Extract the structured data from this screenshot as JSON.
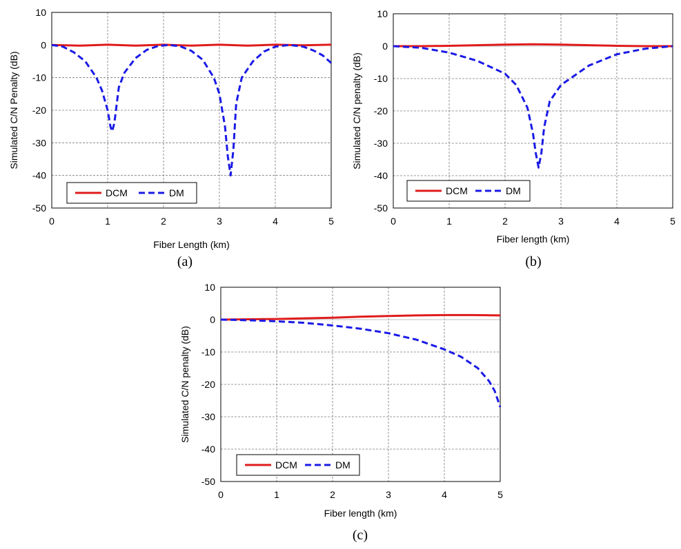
{
  "colors": {
    "DCM": "#e01b1b",
    "DM": "#1a1ae6"
  },
  "chart_data": [
    {
      "type": "line",
      "caption": "(a)",
      "xlabel": "Fiber Length (km)",
      "ylabel": "Simulated C/N Penalty (dB)",
      "xlim": [
        0,
        5
      ],
      "ylim": [
        -50,
        10
      ],
      "xticks": [
        "0",
        "1",
        "2",
        "3",
        "4",
        "5"
      ],
      "yticks": [
        "10",
        "0",
        "-10",
        "-20",
        "-30",
        "-40",
        "-50"
      ],
      "grid": true,
      "legend_position": "bottom-left",
      "series": [
        {
          "name": "DCM",
          "style": "solid",
          "x": [
            0,
            0.5,
            1.0,
            1.5,
            2.0,
            2.5,
            3.0,
            3.5,
            4.0,
            4.5,
            5.0
          ],
          "y": [
            0,
            -0.2,
            0.1,
            -0.2,
            0.1,
            -0.2,
            0.1,
            -0.2,
            0.1,
            -0.1,
            0.1
          ]
        },
        {
          "name": "DM",
          "style": "dashed",
          "x": [
            0,
            0.2,
            0.4,
            0.6,
            0.8,
            0.9,
            1.0,
            1.05,
            1.08,
            1.12,
            1.2,
            1.3,
            1.5,
            1.7,
            1.9,
            2.1,
            2.3,
            2.5,
            2.7,
            2.9,
            3.0,
            3.1,
            3.15,
            3.2,
            3.25,
            3.3,
            3.4,
            3.6,
            3.8,
            4.0,
            4.25,
            4.5,
            4.7,
            4.85,
            5.0
          ],
          "y": [
            0,
            -0.5,
            -2.3,
            -5,
            -10,
            -14,
            -20,
            -25,
            -26.5,
            -24,
            -13,
            -8.5,
            -4,
            -1.5,
            -0.3,
            0,
            -0.4,
            -1.8,
            -4.5,
            -10,
            -15,
            -25,
            -34,
            -40,
            -32,
            -18,
            -10,
            -5,
            -2,
            -0.5,
            0,
            -0.5,
            -1.8,
            -3.2,
            -5.5
          ]
        }
      ],
      "legend": [
        "DCM",
        "DM"
      ]
    },
    {
      "type": "line",
      "caption": "(b)",
      "xlabel": "Fiber length (km)",
      "ylabel": "Simulated C/N penalty (dB)",
      "xlim": [
        0,
        5
      ],
      "ylim": [
        -50,
        10
      ],
      "xticks": [
        "0",
        "1",
        "2",
        "3",
        "4",
        "5"
      ],
      "yticks": [
        "10",
        "0",
        "-10",
        "-20",
        "-30",
        "-40",
        "-50"
      ],
      "grid": true,
      "legend_position": "bottom-left",
      "series": [
        {
          "name": "DCM",
          "style": "solid",
          "x": [
            0,
            0.5,
            1.0,
            1.5,
            2.0,
            2.5,
            3.0,
            3.5,
            4.0,
            4.5,
            5.0
          ],
          "y": [
            0,
            0,
            0.1,
            0.3,
            0.5,
            0.6,
            0.5,
            0.3,
            0.1,
            0,
            0
          ]
        },
        {
          "name": "DM",
          "style": "dashed",
          "x": [
            0,
            0.5,
            1.0,
            1.5,
            2.0,
            2.2,
            2.4,
            2.5,
            2.55,
            2.6,
            2.65,
            2.7,
            2.8,
            3.0,
            3.5,
            4.0,
            4.5,
            5.0
          ],
          "y": [
            0,
            -0.5,
            -2,
            -4.5,
            -8.5,
            -12,
            -19,
            -27,
            -33,
            -37.5,
            -33,
            -25,
            -17,
            -12,
            -6,
            -2.5,
            -0.8,
            0
          ]
        }
      ],
      "legend": [
        "DCM",
        "DM"
      ]
    },
    {
      "type": "line",
      "caption": "(c)",
      "xlabel": "Fiber length (km)",
      "ylabel": "Simulated C/N penalty (dB)",
      "xlim": [
        0,
        5
      ],
      "ylim": [
        -50,
        10
      ],
      "xticks": [
        "0",
        "1",
        "2",
        "3",
        "4",
        "5"
      ],
      "yticks": [
        "10",
        "0",
        "-10",
        "-20",
        "-30",
        "-40",
        "-50"
      ],
      "grid": true,
      "legend_position": "bottom-left",
      "series": [
        {
          "name": "DCM",
          "style": "solid",
          "x": [
            0,
            0.5,
            1.0,
            1.5,
            2.0,
            2.5,
            3.0,
            3.5,
            4.0,
            4.5,
            5.0
          ],
          "y": [
            0,
            0.1,
            0.2,
            0.4,
            0.6,
            0.9,
            1.1,
            1.3,
            1.4,
            1.4,
            1.3
          ]
        },
        {
          "name": "DM",
          "style": "dashed",
          "x": [
            0,
            0.5,
            1.0,
            1.5,
            2.0,
            2.5,
            3.0,
            3.5,
            4.0,
            4.3,
            4.6,
            4.8,
            4.9,
            5.0
          ],
          "y": [
            0,
            -0.2,
            -0.5,
            -1.0,
            -1.8,
            -2.8,
            -4.2,
            -6.2,
            -9.2,
            -11.5,
            -15,
            -19,
            -22,
            -27
          ]
        }
      ],
      "legend": [
        "DCM",
        "DM"
      ]
    }
  ]
}
